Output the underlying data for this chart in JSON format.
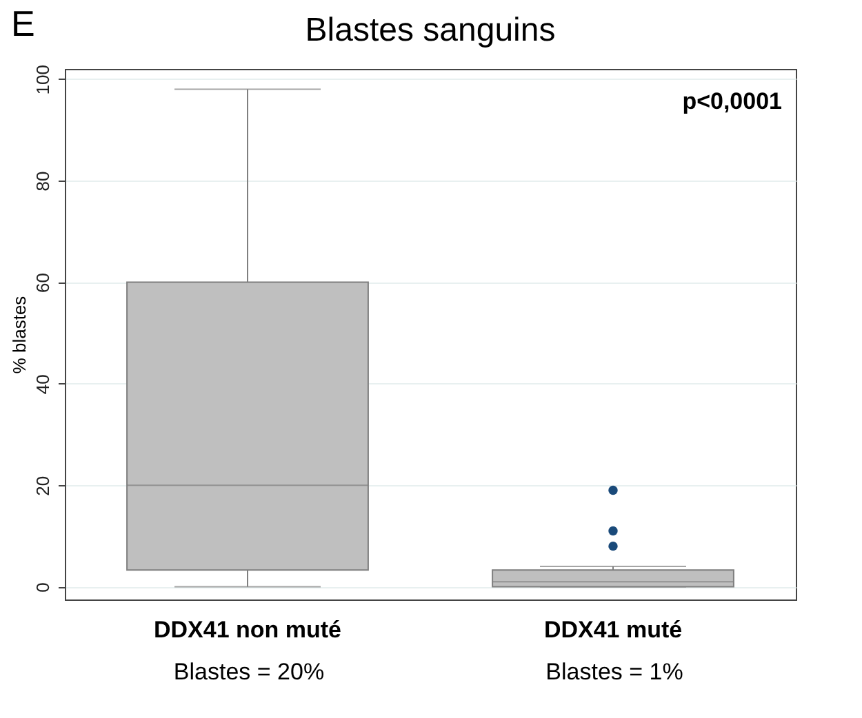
{
  "chart_data": {
    "type": "box",
    "title": "Blastes sanguins",
    "ylabel": "% blastes",
    "categories": [
      "DDX41 non muté",
      "DDX41 muté"
    ],
    "boxes": [
      {
        "low": 0,
        "q1": 3.3,
        "median": 20,
        "q3": 60,
        "high": 98
      },
      {
        "low": 0,
        "q1": 0,
        "median": 1,
        "q3": 3.3,
        "high": 4,
        "outliers": [
          8,
          11,
          19
        ]
      }
    ],
    "ylim": [
      -2.5,
      102
    ],
    "yticks": [
      0,
      20,
      40,
      60,
      80,
      100
    ],
    "grid": "y",
    "marker": "circle",
    "annotations": [
      "E",
      "p<0,0001",
      "Blastes = 20%",
      "Blastes = 1%"
    ]
  }
}
